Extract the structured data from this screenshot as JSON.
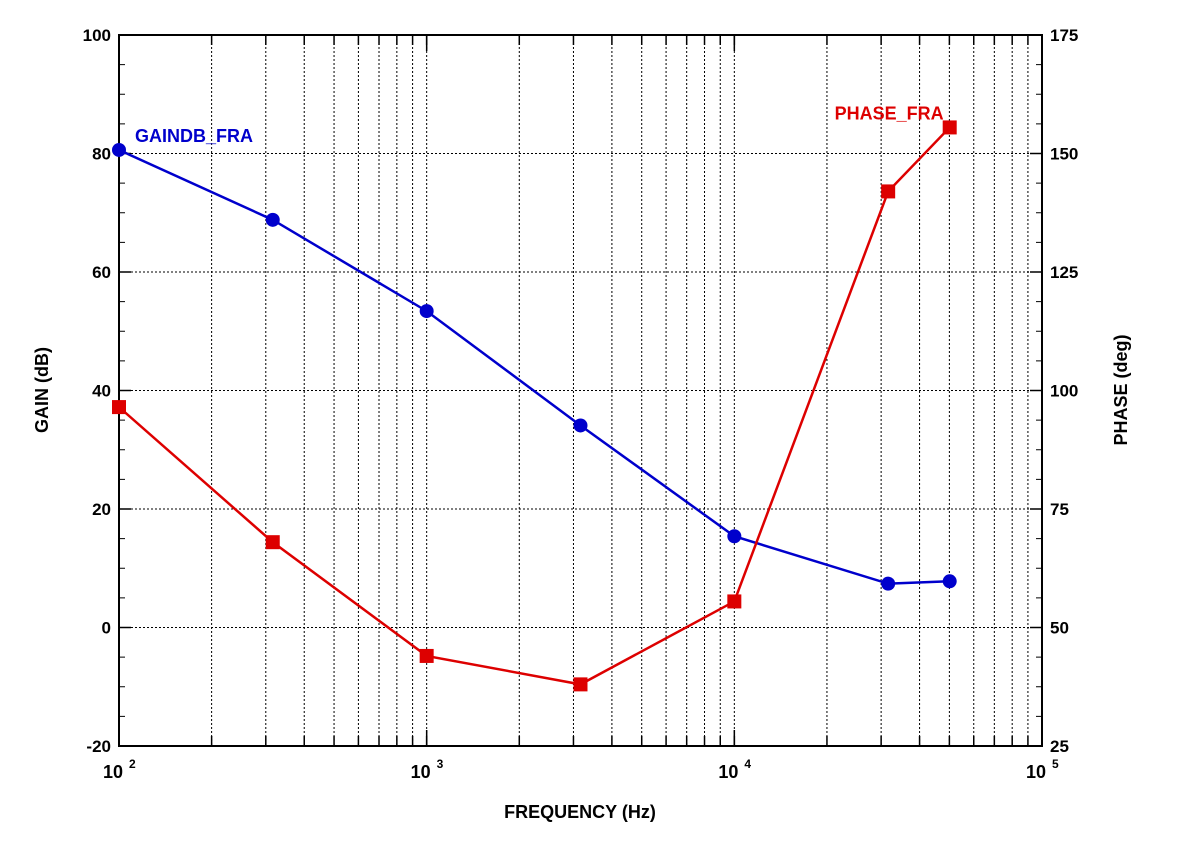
{
  "chart_data": {
    "type": "line",
    "title": "",
    "xlabel": "FREQUENCY  (Hz)",
    "ylabel": "GAIN  (dB)",
    "y2label": "PHASE  (deg)",
    "xscale": "log",
    "xlim": [
      100,
      100000
    ],
    "ylim": [
      -20,
      100
    ],
    "y2lim": [
      25,
      175
    ],
    "grid": true,
    "x_ticks": [
      {
        "value": 100,
        "base": "10",
        "exp": "2"
      },
      {
        "value": 1000,
        "base": "10",
        "exp": "3"
      },
      {
        "value": 10000,
        "base": "10",
        "exp": "4"
      },
      {
        "value": 100000,
        "base": "10",
        "exp": "5"
      }
    ],
    "y_ticks": [
      -20,
      0,
      20,
      40,
      60,
      80,
      100
    ],
    "y2_ticks": [
      25,
      50,
      75,
      100,
      125,
      150,
      175
    ],
    "series": [
      {
        "name": "GAINDB_FRA",
        "axis": "left",
        "color": "#0000cc",
        "marker": "circle",
        "x": [
          100,
          316,
          1000,
          3162,
          10000,
          31623,
          50119
        ],
        "y": [
          80.6,
          68.8,
          53.4,
          34.1,
          15.4,
          7.4,
          7.8
        ]
      },
      {
        "name": "PHASE_FRA",
        "axis": "right",
        "color": "#dd0000",
        "marker": "square",
        "x": [
          100,
          316,
          1000,
          3162,
          10000,
          31623,
          50119
        ],
        "y": [
          96.5,
          68.0,
          44.0,
          38.0,
          55.5,
          142.0,
          155.5
        ]
      }
    ]
  }
}
